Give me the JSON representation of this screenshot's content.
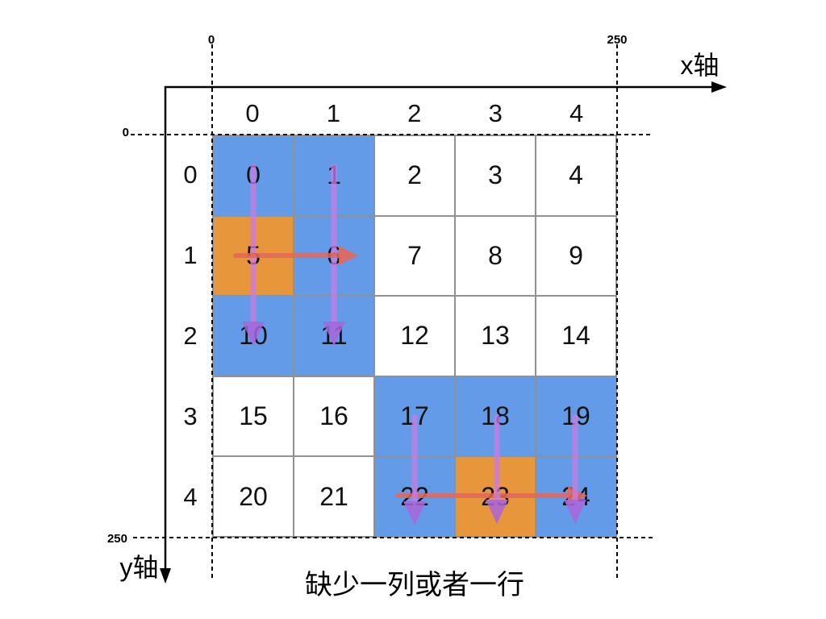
{
  "axes": {
    "x_axis_label": "x轴",
    "y_axis_label": "y轴",
    "x_tick_start": "0",
    "x_tick_end": "250",
    "y_tick_start": "0",
    "y_tick_end": "250"
  },
  "grid": {
    "col_headers": [
      "0",
      "1",
      "2",
      "3",
      "4"
    ],
    "row_headers": [
      "0",
      "1",
      "2",
      "3",
      "4"
    ],
    "cells": [
      {
        "value": "0",
        "color": "blue"
      },
      {
        "value": "1",
        "color": "blue"
      },
      {
        "value": "2",
        "color": "white"
      },
      {
        "value": "3",
        "color": "white"
      },
      {
        "value": "4",
        "color": "white"
      },
      {
        "value": "5",
        "color": "orange"
      },
      {
        "value": "6",
        "color": "blue"
      },
      {
        "value": "7",
        "color": "white"
      },
      {
        "value": "8",
        "color": "white"
      },
      {
        "value": "9",
        "color": "white"
      },
      {
        "value": "10",
        "color": "blue"
      },
      {
        "value": "11",
        "color": "blue"
      },
      {
        "value": "12",
        "color": "white"
      },
      {
        "value": "13",
        "color": "white"
      },
      {
        "value": "14",
        "color": "white"
      },
      {
        "value": "15",
        "color": "white"
      },
      {
        "value": "16",
        "color": "white"
      },
      {
        "value": "17",
        "color": "blue"
      },
      {
        "value": "18",
        "color": "blue"
      },
      {
        "value": "19",
        "color": "blue"
      },
      {
        "value": "20",
        "color": "white"
      },
      {
        "value": "21",
        "color": "white"
      },
      {
        "value": "22",
        "color": "blue"
      },
      {
        "value": "23",
        "color": "orange"
      },
      {
        "value": "24",
        "color": "blue"
      }
    ]
  },
  "caption": "缺少一列或者一行",
  "colors": {
    "cell_blue": "#639BE8",
    "cell_orange": "#E8963C",
    "grid_line": "#919191",
    "arrow_purple": "#CC7BE4",
    "arrowhead_purple": "#A965D9",
    "arrow_red": "#E2685A"
  }
}
